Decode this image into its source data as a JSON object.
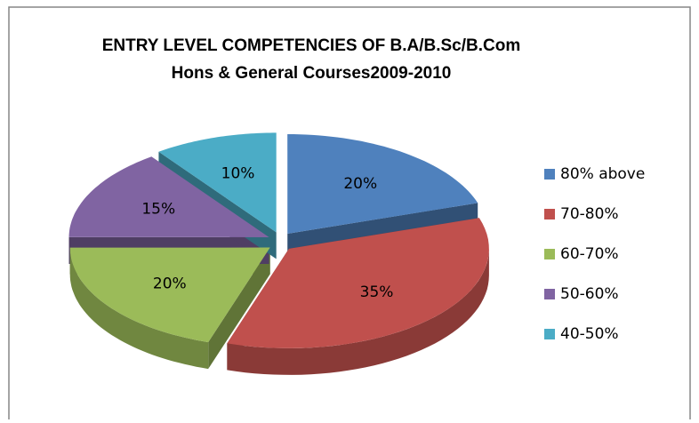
{
  "chart_data": {
    "type": "pie",
    "title": [
      "ENTRY LEVEL COMPETENCIES OF B.A/B.Sc/B.Com",
      "Hons & General Courses2009-2010"
    ],
    "categories": [
      "80% above",
      "70-80%",
      "60-70%",
      "50-60%",
      "40-50%"
    ],
    "values": [
      20,
      35,
      20,
      15,
      10
    ],
    "value_labels": [
      "20%",
      "35%",
      "20%",
      "15%",
      "10%"
    ],
    "colors": [
      "#4f81bd",
      "#c0504d",
      "#9bbb59",
      "#8064a2",
      "#4bacc6"
    ],
    "legend": "right"
  }
}
